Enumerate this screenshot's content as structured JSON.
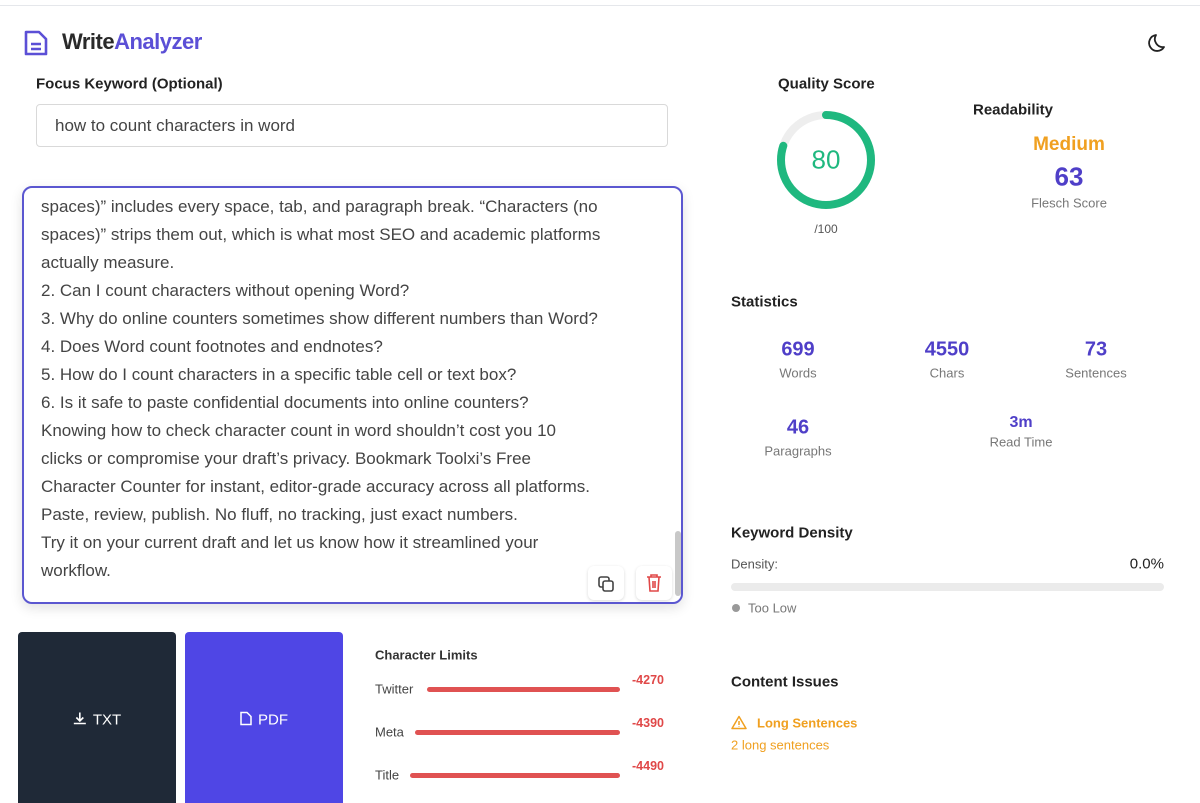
{
  "header": {
    "brand_a": "Write",
    "brand_b": "Analyzer"
  },
  "keyword": {
    "label": "Focus Keyword (Optional)",
    "value": "how to count characters in word"
  },
  "editor": {
    "lines": [
      "spaces)” includes every space, tab, and paragraph break. “Characters (no",
      "spaces)” strips them out, which is what most SEO and academic platforms",
      "actually measure.",
      "2. Can I count characters without opening Word?",
      "3. Why do online counters sometimes show different numbers than Word?",
      "4. Does Word count footnotes and endnotes?",
      "5. How do I count characters in a specific table cell or text box?",
      "6. Is it safe to paste confidential documents into online counters?",
      "Knowing how to check character count in word shouldn’t cost you 10",
      "clicks or compromise your draft’s privacy. Bookmark Toolxi’s Free",
      "Character Counter for instant, editor-grade accuracy across all platforms.",
      "Paste, review, publish. No fluff, no tracking, just exact numbers.",
      "Try it on your current draft and let us know how it streamlined your",
      "workflow."
    ]
  },
  "buttons": {
    "txt": "TXT",
    "pdf": "PDF"
  },
  "limits": {
    "title": "Character Limits",
    "items": [
      {
        "name": "Twitter",
        "value": -4270
      },
      {
        "name": "Meta",
        "value": -4390
      },
      {
        "name": "Title",
        "value": -4490
      }
    ]
  },
  "quality": {
    "title": "Quality Score",
    "score": 80,
    "max": {
      "value": 100,
      "label": "/100"
    }
  },
  "readability": {
    "title": "Readability",
    "level": "Medium",
    "score": 63,
    "label": "Flesch Score"
  },
  "statistics": {
    "title": "Statistics",
    "items": [
      {
        "value": 699,
        "label": "Words"
      },
      {
        "value": 4550,
        "label": "Chars"
      },
      {
        "value": 73,
        "label": "Sentences"
      },
      {
        "value": 46,
        "label": "Paragraphs"
      },
      {
        "value": "3m",
        "label": "Read Time"
      }
    ]
  },
  "keyword_density": {
    "title": "Keyword Density",
    "label": "Density:",
    "value": {
      "value": 0,
      "label": "0.0%"
    },
    "status": "Too Low"
  },
  "content_issues": {
    "title": "Content Issues",
    "issue": "Long Sentences",
    "detail": "2 long sentences"
  }
}
